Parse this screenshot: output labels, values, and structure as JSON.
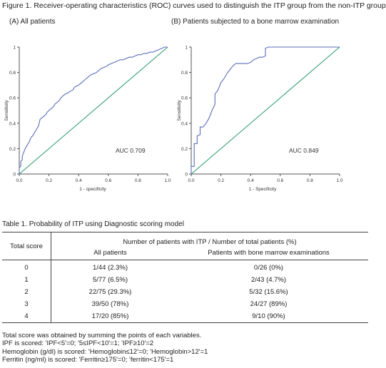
{
  "figure": {
    "title": "Figure 1. Receiver-operating characteristics (ROC) curves used to distinguish the ITP group from the non-ITP group"
  },
  "chart_data": [
    {
      "type": "line",
      "title": "(A) All patients",
      "xlabel": "1 - specificity",
      "ylabel": "Sensitivity",
      "xlim": [
        0,
        1
      ],
      "ylim": [
        0,
        1
      ],
      "x_ticks": [
        "0.0",
        "0.2",
        "0.4",
        "0.6",
        "0.8",
        "1.0"
      ],
      "y_ticks": [
        "0",
        "0.2",
        "0.4",
        "0.6",
        "0.8",
        "1"
      ],
      "annotation": "AUC 0.709",
      "colors": {
        "roc": "#5a6fb8",
        "reference": "#2e9e6e",
        "axis": "#555555"
      },
      "series": [
        {
          "x": [
            0,
            0,
            0.01,
            0.01,
            0.02,
            0.02,
            0.03,
            0.04,
            0.05,
            0.06,
            0.07,
            0.08,
            0.09,
            0.1,
            0.11,
            0.12,
            0.13,
            0.14,
            0.15,
            0.16,
            0.17,
            0.18,
            0.19,
            0.2,
            0.21,
            0.22,
            0.23,
            0.24,
            0.25,
            0.27,
            0.28,
            0.3,
            0.31,
            0.33,
            0.34,
            0.36,
            0.37,
            0.38,
            0.4,
            0.41,
            0.42,
            0.43,
            0.45,
            0.47,
            0.48,
            0.5,
            0.52,
            0.53,
            0.55,
            0.57,
            0.59,
            0.6,
            0.62,
            0.64,
            0.66,
            0.68,
            0.7,
            0.72,
            0.74,
            0.76,
            0.78,
            0.8,
            0.82,
            0.84,
            0.86,
            0.88,
            0.9,
            0.92,
            0.94,
            0.96,
            0.98,
            1.0
          ],
          "y": [
            0,
            0.05,
            0.06,
            0.1,
            0.11,
            0.14,
            0.17,
            0.2,
            0.22,
            0.24,
            0.26,
            0.29,
            0.3,
            0.32,
            0.34,
            0.36,
            0.38,
            0.43,
            0.44,
            0.45,
            0.46,
            0.47,
            0.49,
            0.5,
            0.51,
            0.52,
            0.53,
            0.55,
            0.56,
            0.58,
            0.6,
            0.62,
            0.63,
            0.64,
            0.65,
            0.66,
            0.68,
            0.69,
            0.7,
            0.71,
            0.72,
            0.73,
            0.75,
            0.77,
            0.78,
            0.79,
            0.8,
            0.81,
            0.83,
            0.84,
            0.85,
            0.86,
            0.87,
            0.88,
            0.89,
            0.9,
            0.9,
            0.91,
            0.92,
            0.92,
            0.93,
            0.94,
            0.94,
            0.95,
            0.95,
            0.96,
            0.96,
            0.97,
            0.98,
            0.99,
            1.0,
            1.0
          ]
        }
      ]
    },
    {
      "type": "line",
      "title": "(B) Patients subjected to a bone marrow examination",
      "xlabel": "1 - Specificity",
      "ylabel": "Sensitivity",
      "xlim": [
        0,
        1
      ],
      "ylim": [
        0,
        1
      ],
      "x_ticks": [
        "0.0",
        "0.2",
        "0.4",
        "0.6",
        "0.8",
        "1.0"
      ],
      "y_ticks": [
        "0",
        "0.2",
        "0.4",
        "0.6",
        "0.8",
        "1"
      ],
      "annotation": "AUC 0.849",
      "colors": {
        "roc": "#5a6fb8",
        "reference": "#2e9e6e",
        "axis": "#555555"
      },
      "series": [
        {
          "x": [
            0,
            0,
            0.02,
            0.02,
            0.04,
            0.04,
            0.06,
            0.06,
            0.08,
            0.1,
            0.12,
            0.14,
            0.16,
            0.16,
            0.18,
            0.2,
            0.22,
            0.24,
            0.26,
            0.28,
            0.3,
            0.32,
            0.34,
            0.36,
            0.38,
            0.4,
            0.42,
            0.44,
            0.46,
            0.48,
            0.5,
            0.5,
            0.52,
            0.55,
            0.6,
            0.65,
            0.7,
            0.8,
            0.9,
            1.0
          ],
          "y": [
            0,
            0.06,
            0.06,
            0.24,
            0.24,
            0.3,
            0.31,
            0.37,
            0.37,
            0.4,
            0.44,
            0.5,
            0.55,
            0.63,
            0.66,
            0.72,
            0.75,
            0.79,
            0.82,
            0.85,
            0.87,
            0.87,
            0.87,
            0.87,
            0.87,
            0.88,
            0.9,
            0.91,
            0.92,
            0.92,
            0.93,
            0.99,
            1.0,
            1.0,
            1.0,
            1.0,
            1.0,
            1.0,
            1.0,
            1.0
          ]
        }
      ]
    }
  ],
  "table": {
    "title": "Table 1. Probability of ITP using Diagnostic scoring model",
    "header_total": "Total score",
    "header_group": "Number of patients with ITP / Number of total patients (%)",
    "header_all": "All patients",
    "header_bm": "Patients with bone marrow examinations",
    "rows": [
      {
        "score": "0",
        "all": "1/44 (2.3%)",
        "bm": "0/26 (0%)"
      },
      {
        "score": "1",
        "all": "5/77 (6.5%)",
        "bm": "2/43 (4.7%)"
      },
      {
        "score": "2",
        "all": "22/75 (29.3%)",
        "bm": "5/32 (15.6%)"
      },
      {
        "score": "3",
        "all": "39/50 (78%)",
        "bm": "24/27 (89%)"
      },
      {
        "score": "4",
        "all": "17/20 (85%)",
        "bm": "9/10 (90%)"
      }
    ]
  },
  "notes": [
    "Total score was obtained by summing the points of each variables.",
    "IPF is scored: 'IPF<5'=0; '5≤IPF<10'=1; 'IPF≥10'=2",
    "Hemoglobin (g/dl) is scored: 'Hemoglobin≤12'=0; 'Hemoglobin>12'=1",
    "Ferritin (ng/ml) is scored: 'Ferritin≥175'=0; 'ferritin<175'=1"
  ]
}
